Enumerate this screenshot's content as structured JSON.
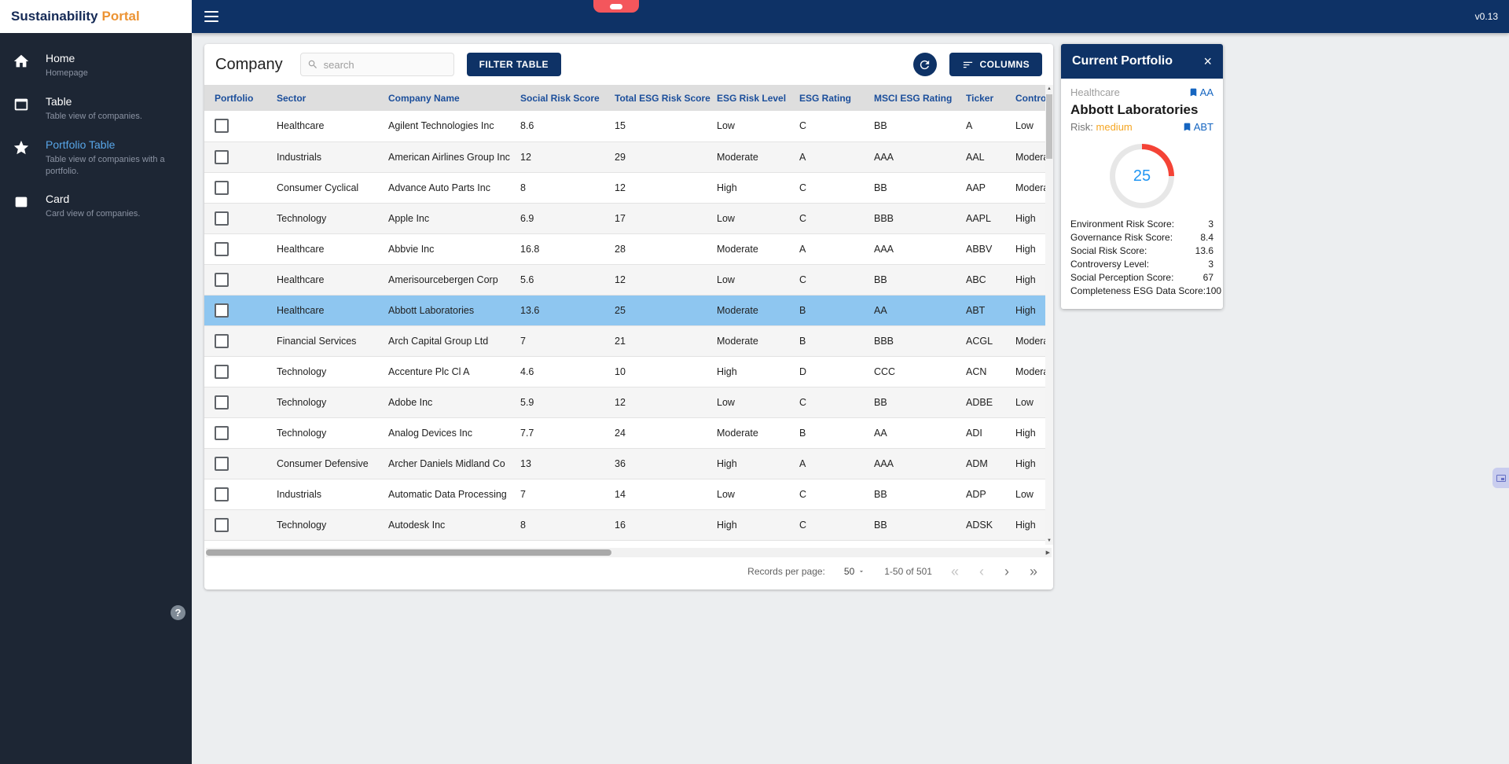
{
  "brand": {
    "name_primary": "Sustainability",
    "name_secondary": "Portal"
  },
  "topbar": {
    "version": "v0.13"
  },
  "sidebar": {
    "items": [
      {
        "label": "Home",
        "description": "Homepage"
      },
      {
        "label": "Table",
        "description": "Table view of companies."
      },
      {
        "label": "Portfolio Table",
        "description": "Table view of companies with a portfolio."
      },
      {
        "label": "Card",
        "description": "Card view of companies."
      }
    ],
    "help_label": "?"
  },
  "toolbar": {
    "title": "Company",
    "search_placeholder": "search",
    "filter_button_label": "FILTER TABLE",
    "columns_button_label": "COLUMNS"
  },
  "table": {
    "columns": [
      "Portfolio",
      "Sector",
      "Company Name",
      "Social Risk Score",
      "Total ESG Risk Score",
      "ESG Risk Level",
      "ESG Rating",
      "MSCI ESG Rating",
      "Ticker",
      "Controversy Level"
    ],
    "rows": [
      {
        "sector": "Healthcare",
        "company": "Agilent Technologies Inc",
        "social_risk": "8.6",
        "total_esg": "15",
        "risk_level": "Low",
        "esg_rating": "C",
        "msci_rating": "BB",
        "ticker": "A",
        "controversy": "Low",
        "selected": false
      },
      {
        "sector": "Industrials",
        "company": "American Airlines Group Inc",
        "social_risk": "12",
        "total_esg": "29",
        "risk_level": "Moderate",
        "esg_rating": "A",
        "msci_rating": "AAA",
        "ticker": "AAL",
        "controversy": "Moderate",
        "selected": false
      },
      {
        "sector": "Consumer Cyclical",
        "company": "Advance Auto Parts Inc",
        "social_risk": "8",
        "total_esg": "12",
        "risk_level": "High",
        "esg_rating": "C",
        "msci_rating": "BB",
        "ticker": "AAP",
        "controversy": "Moderate",
        "selected": false
      },
      {
        "sector": "Technology",
        "company": "Apple Inc",
        "social_risk": "6.9",
        "total_esg": "17",
        "risk_level": "Low",
        "esg_rating": "C",
        "msci_rating": "BBB",
        "ticker": "AAPL",
        "controversy": "High",
        "selected": false
      },
      {
        "sector": "Healthcare",
        "company": "Abbvie Inc",
        "social_risk": "16.8",
        "total_esg": "28",
        "risk_level": "Moderate",
        "esg_rating": "A",
        "msci_rating": "AAA",
        "ticker": "ABBV",
        "controversy": "High",
        "selected": false
      },
      {
        "sector": "Healthcare",
        "company": "Amerisourcebergen Corp",
        "social_risk": "5.6",
        "total_esg": "12",
        "risk_level": "Low",
        "esg_rating": "C",
        "msci_rating": "BB",
        "ticker": "ABC",
        "controversy": "High",
        "selected": false
      },
      {
        "sector": "Healthcare",
        "company": "Abbott Laboratories",
        "social_risk": "13.6",
        "total_esg": "25",
        "risk_level": "Moderate",
        "esg_rating": "B",
        "msci_rating": "AA",
        "ticker": "ABT",
        "controversy": "High",
        "selected": true
      },
      {
        "sector": "Financial Services",
        "company": "Arch Capital Group Ltd",
        "social_risk": "7",
        "total_esg": "21",
        "risk_level": "Moderate",
        "esg_rating": "B",
        "msci_rating": "BBB",
        "ticker": "ACGL",
        "controversy": "Moderate",
        "selected": false
      },
      {
        "sector": "Technology",
        "company": "Accenture Plc Cl A",
        "social_risk": "4.6",
        "total_esg": "10",
        "risk_level": "High",
        "esg_rating": "D",
        "msci_rating": "CCC",
        "ticker": "ACN",
        "controversy": "Moderate",
        "selected": false
      },
      {
        "sector": "Technology",
        "company": "Adobe Inc",
        "social_risk": "5.9",
        "total_esg": "12",
        "risk_level": "Low",
        "esg_rating": "C",
        "msci_rating": "BB",
        "ticker": "ADBE",
        "controversy": "Low",
        "selected": false
      },
      {
        "sector": "Technology",
        "company": "Analog Devices Inc",
        "social_risk": "7.7",
        "total_esg": "24",
        "risk_level": "Moderate",
        "esg_rating": "B",
        "msci_rating": "AA",
        "ticker": "ADI",
        "controversy": "High",
        "selected": false
      },
      {
        "sector": "Consumer Defensive",
        "company": "Archer Daniels Midland Co",
        "social_risk": "13",
        "total_esg": "36",
        "risk_level": "High",
        "esg_rating": "A",
        "msci_rating": "AAA",
        "ticker": "ADM",
        "controversy": "High",
        "selected": false
      },
      {
        "sector": "Industrials",
        "company": "Automatic Data Processing",
        "social_risk": "7",
        "total_esg": "14",
        "risk_level": "Low",
        "esg_rating": "C",
        "msci_rating": "BB",
        "ticker": "ADP",
        "controversy": "Low",
        "selected": false
      },
      {
        "sector": "Technology",
        "company": "Autodesk Inc",
        "social_risk": "8",
        "total_esg": "16",
        "risk_level": "High",
        "esg_rating": "C",
        "msci_rating": "BB",
        "ticker": "ADSK",
        "controversy": "High",
        "selected": false
      }
    ]
  },
  "pagination": {
    "records_per_page_label": "Records per page:",
    "page_size": "50",
    "range": "1-50 of 501"
  },
  "portfolio_panel": {
    "title": "Current Portfolio",
    "sector": "Healthcare",
    "msci_rating": "AA",
    "company_name": "Abbott Laboratories",
    "risk_label": "Risk:",
    "risk_value": "medium",
    "ticker": "ABT",
    "gauge_value": "25",
    "stats": [
      {
        "label": "Environment Risk Score:",
        "value": "3"
      },
      {
        "label": "Governance Risk Score:",
        "value": "8.4"
      },
      {
        "label": "Social Risk Score:",
        "value": "13.6"
      },
      {
        "label": "Controversy Level:",
        "value": "3"
      },
      {
        "label": "Social Perception Score:",
        "value": "67"
      },
      {
        "label": "Completeness ESG Data Score:",
        "value": "100"
      }
    ]
  },
  "colors": {
    "navy": "#0e3266",
    "sidebar": "#1d2634",
    "brand_orange": "#ec9333",
    "active_nav": "#58a6e8",
    "selected_row": "#8ec6f0",
    "gauge_red": "#f44336",
    "gauge_score_blue": "#2196f3",
    "risk_medium_orange": "#f5a623",
    "bookmark_blue": "#1565c0"
  }
}
